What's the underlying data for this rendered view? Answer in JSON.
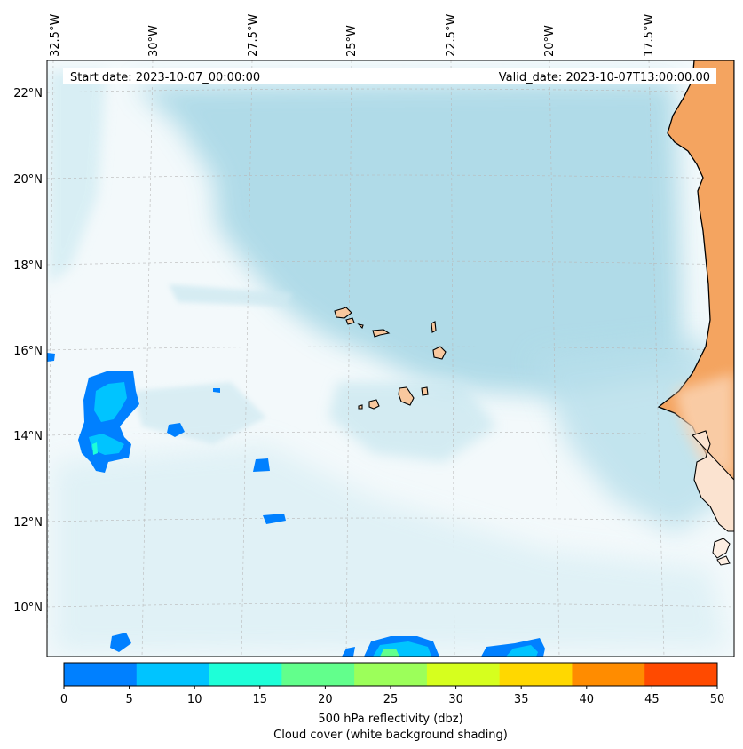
{
  "header": {
    "start_date": "Start date: 2023-10-07_00:00:00",
    "valid_date": "Valid_date: 2023-10-07T13:00:00.00"
  },
  "longitude_labels": [
    "32.5°W",
    "30°W",
    "27.5°W",
    "25°W",
    "22.5°W",
    "20°W",
    "17.5°W"
  ],
  "latitude_labels": [
    "22°N",
    "20°N",
    "18°N",
    "16°N",
    "14°N",
    "12°N",
    "10°N"
  ],
  "colorbar": {
    "ticks": [
      "0",
      "5",
      "10",
      "15",
      "20",
      "25",
      "30",
      "35",
      "40",
      "45",
      "50"
    ],
    "colors": [
      "#0080ff",
      "#00c4ff",
      "#1effd8",
      "#62ff8c",
      "#9cff5a",
      "#d6ff1e",
      "#ffd800",
      "#ff8c00",
      "#ff4a00"
    ],
    "label_line1": "500 hPa reflectivity (dbz)",
    "label_line2": "Cloud cover (white background shading)"
  },
  "colors": {
    "land": "#f4a460",
    "cloud": "#a9d8e6",
    "gridline": "#b0b0b0",
    "coast": "#000000"
  }
}
